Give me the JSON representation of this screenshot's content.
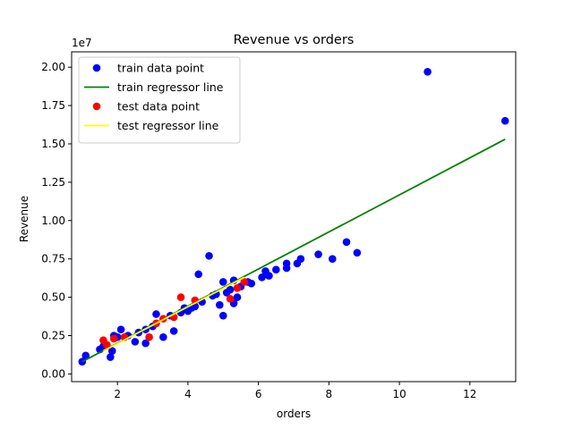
{
  "chart_data": {
    "type": "scatter",
    "title": "Revenue vs orders",
    "xlabel": "orders",
    "ylabel": "Revenue",
    "y_multiplier_label": "1e7",
    "xlim": [
      0.7,
      13.3
    ],
    "ylim": [
      -0.05,
      2.1
    ],
    "x_ticks": [
      2,
      4,
      6,
      8,
      10,
      12
    ],
    "x_tick_labels": [
      "2",
      "4",
      "6",
      "8",
      "10",
      "12"
    ],
    "y_ticks": [
      0,
      0.25,
      0.5,
      0.75,
      1.0,
      1.25,
      1.5,
      1.75,
      2.0
    ],
    "y_tick_labels": [
      "0.00",
      "0.25",
      "0.50",
      "0.75",
      "1.00",
      "1.25",
      "1.50",
      "1.75",
      "2.00"
    ],
    "grid": false,
    "legend_position": "top-left",
    "legend": [
      {
        "label": "train data point",
        "kind": "marker",
        "color": "#0000ff"
      },
      {
        "label": "train regressor line",
        "kind": "line",
        "color": "#008000"
      },
      {
        "label": "test data point",
        "kind": "marker",
        "color": "#ff0000"
      },
      {
        "label": "test regressor line",
        "kind": "line",
        "color": "#ffff00"
      }
    ],
    "series": [
      {
        "name": "train data point",
        "kind": "scatter",
        "color": "#0000ff",
        "points": [
          [
            1.0,
            0.08
          ],
          [
            1.1,
            0.12
          ],
          [
            1.5,
            0.16
          ],
          [
            1.6,
            0.18
          ],
          [
            1.8,
            0.11
          ],
          [
            1.85,
            0.15
          ],
          [
            1.9,
            0.25
          ],
          [
            2.0,
            0.24
          ],
          [
            2.1,
            0.29
          ],
          [
            2.3,
            0.25
          ],
          [
            2.5,
            0.21
          ],
          [
            2.6,
            0.27
          ],
          [
            2.8,
            0.2
          ],
          [
            2.8,
            0.29
          ],
          [
            3.0,
            0.31
          ],
          [
            3.1,
            0.39
          ],
          [
            3.3,
            0.24
          ],
          [
            3.5,
            0.38
          ],
          [
            3.6,
            0.28
          ],
          [
            3.8,
            0.4
          ],
          [
            3.9,
            0.43
          ],
          [
            4.0,
            0.41
          ],
          [
            4.1,
            0.43
          ],
          [
            4.2,
            0.44
          ],
          [
            4.3,
            0.65
          ],
          [
            4.4,
            0.47
          ],
          [
            4.6,
            0.77
          ],
          [
            4.7,
            0.51
          ],
          [
            4.8,
            0.52
          ],
          [
            4.9,
            0.45
          ],
          [
            5.0,
            0.38
          ],
          [
            5.0,
            0.6
          ],
          [
            5.1,
            0.53
          ],
          [
            5.2,
            0.55
          ],
          [
            5.3,
            0.46
          ],
          [
            5.3,
            0.61
          ],
          [
            5.4,
            0.5
          ],
          [
            5.5,
            0.57
          ],
          [
            5.7,
            0.6
          ],
          [
            5.8,
            0.59
          ],
          [
            6.1,
            0.63
          ],
          [
            6.2,
            0.67
          ],
          [
            6.3,
            0.64
          ],
          [
            6.5,
            0.68
          ],
          [
            6.8,
            0.69
          ],
          [
            6.8,
            0.72
          ],
          [
            7.1,
            0.72
          ],
          [
            7.2,
            0.75
          ],
          [
            7.7,
            0.78
          ],
          [
            8.1,
            0.75
          ],
          [
            8.5,
            0.86
          ],
          [
            8.8,
            0.79
          ],
          [
            10.8,
            1.97
          ],
          [
            13.0,
            1.65
          ]
        ]
      },
      {
        "name": "train regressor line",
        "kind": "line",
        "color": "#008000",
        "points": [
          [
            1.0,
            0.08
          ],
          [
            13.0,
            1.53
          ]
        ]
      },
      {
        "name": "test data point",
        "kind": "scatter",
        "color": "#ff0000",
        "points": [
          [
            1.6,
            0.22
          ],
          [
            1.7,
            0.19
          ],
          [
            1.9,
            0.23
          ],
          [
            2.2,
            0.24
          ],
          [
            2.9,
            0.24
          ],
          [
            3.1,
            0.33
          ],
          [
            3.3,
            0.36
          ],
          [
            3.6,
            0.37
          ],
          [
            3.8,
            0.5
          ],
          [
            4.2,
            0.48
          ],
          [
            5.2,
            0.49
          ],
          [
            5.4,
            0.56
          ],
          [
            5.6,
            0.6
          ]
        ]
      },
      {
        "name": "test regressor line",
        "kind": "line",
        "color": "#ffff00",
        "points": [
          [
            1.6,
            0.15
          ],
          [
            5.6,
            0.63
          ]
        ]
      }
    ]
  }
}
